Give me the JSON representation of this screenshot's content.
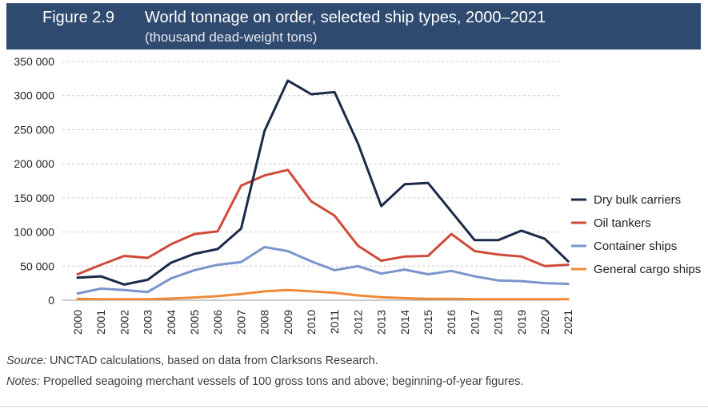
{
  "header": {
    "figure_label": "Figure 2.9",
    "title": "World tonnage on order, selected ship types, 2000–2021",
    "subtitle": "(thousand dead-weight tons)"
  },
  "colors": {
    "header_bg": "#2f4a6f",
    "dry_bulk": "#1b2a4a",
    "oil_tankers": "#d04a3a",
    "container": "#7b94cc",
    "general_cargo": "#ee8a3a"
  },
  "chart_data": {
    "type": "line",
    "x": [
      "2000",
      "2001",
      "2002",
      "2003",
      "2004",
      "2005",
      "2006",
      "2007",
      "2008",
      "2009",
      "2010",
      "2011",
      "2012",
      "2013",
      "2014",
      "2015",
      "2016",
      "2017",
      "2018",
      "2019",
      "2020",
      "2021"
    ],
    "y_ticks": [
      "0",
      "50 000",
      "100 000",
      "150 000",
      "200 000",
      "250 000",
      "300 000",
      "350 000"
    ],
    "ylim": [
      0,
      350000
    ],
    "grid": "horizontal-dashed",
    "legend_position": "right",
    "series": [
      {
        "name": "Dry bulk carriers",
        "color": "#1b2a4a",
        "values": [
          33000,
          35000,
          23000,
          30000,
          55000,
          68000,
          75000,
          105000,
          248000,
          322000,
          302000,
          305000,
          230000,
          138000,
          170000,
          172000,
          130000,
          88000,
          88000,
          102000,
          90000,
          57000
        ]
      },
      {
        "name": "Oil tankers",
        "color": "#d04a3a",
        "values": [
          38000,
          52000,
          65000,
          62000,
          82000,
          97000,
          101000,
          168000,
          183000,
          191000,
          145000,
          124000,
          80000,
          58000,
          64000,
          65000,
          97000,
          72000,
          67000,
          64000,
          50000,
          52000
        ]
      },
      {
        "name": "Container ships",
        "color": "#7b94cc",
        "values": [
          10000,
          17000,
          15000,
          12000,
          32000,
          44000,
          52000,
          56000,
          78000,
          72000,
          57000,
          44000,
          50000,
          39000,
          45000,
          38000,
          43000,
          35000,
          29000,
          28000,
          25000,
          24000
        ]
      },
      {
        "name": "General cargo ships",
        "color": "#ee8a3a",
        "values": [
          2000,
          1500,
          1500,
          1500,
          2500,
          4000,
          6000,
          9000,
          13000,
          15000,
          13000,
          11000,
          7000,
          4500,
          3000,
          2000,
          2000,
          1500,
          1500,
          1500,
          1500,
          1500
        ]
      }
    ]
  },
  "footer": {
    "source_lead": "Source:",
    "source_text": " UNCTAD calculations, based on data from Clarksons Research.",
    "notes_lead": "Notes:",
    "notes_text": " Propelled seagoing merchant vessels of 100 gross tons and above; beginning-of-year figures."
  }
}
